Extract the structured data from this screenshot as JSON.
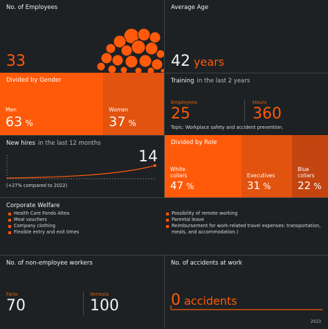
{
  "employees": {
    "title": "No. of Employees",
    "value": 33
  },
  "average_age": {
    "title": "Average Age",
    "value": 42,
    "unit": "years"
  },
  "gender": {
    "title": "Divided by Gender",
    "unit": "%",
    "groups": [
      {
        "label": "Men",
        "value": 63
      },
      {
        "label": "Women",
        "value": 37
      }
    ]
  },
  "training": {
    "title": "Training",
    "subtitle": "in the last 2 years",
    "metrics": [
      {
        "label": "Employees",
        "value": 25
      },
      {
        "label": "Hours",
        "value": 360
      }
    ],
    "topic": "Topic: Workplace safety and accident prevention."
  },
  "new_hires": {
    "title": "New hires",
    "subtitle": "in the last 12 months",
    "value": 14,
    "note": "(+27% compared to 2022)"
  },
  "role": {
    "title": "Divided by Role",
    "unit": "%",
    "groups": [
      {
        "label": "White collars",
        "value": 47
      },
      {
        "label": "Executives",
        "value": 31
      },
      {
        "label": "Blue collars",
        "value": 22
      }
    ]
  },
  "welfare": {
    "title": "Corporate Welfare",
    "left": [
      "Health Care Fondo Altea",
      "Meal vouchers",
      "Company clothing",
      "Flexible entry and exit times"
    ],
    "right": [
      "Possibility of remote working",
      "Parental leave",
      "Reimbursement for work-related travel expenses: transportation, meals, and accommodation.)"
    ]
  },
  "non_employee": {
    "title": "No. of non-employee workers",
    "sites": [
      {
        "label": "Fano",
        "value": 70
      },
      {
        "label": "Venezia",
        "value": 100
      }
    ]
  },
  "accidents": {
    "title": "No. of accidents at work",
    "value": 0,
    "unit": "accidents",
    "year": "2023"
  }
}
